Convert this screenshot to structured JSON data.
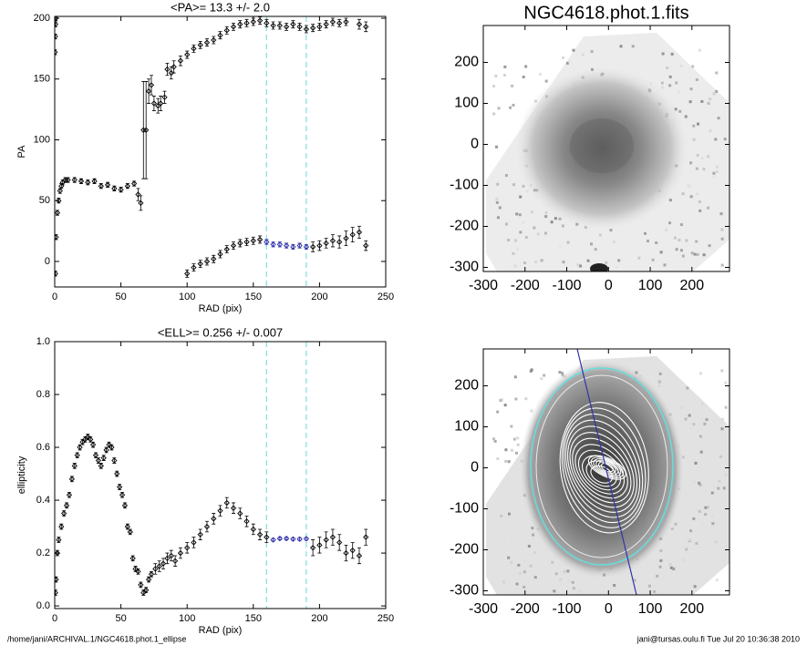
{
  "chart_data": [
    {
      "type": "scatter",
      "title": "<PA>=  13.3 +/-   2.0",
      "x_label": "RAD (pix)",
      "y_label": "PA",
      "xlim": [
        0,
        250
      ],
      "xticks": [
        0,
        50,
        100,
        150,
        200,
        250
      ],
      "ylim": [
        -21,
        201.5
      ],
      "yticks": [
        0,
        50,
        100,
        150,
        200
      ],
      "vlines": [
        160,
        190
      ],
      "vline_color": "#7fdede",
      "series": [
        {
          "color": "#000000",
          "x": [
            0.2,
            0.4,
            0.6,
            0.8,
            0.5,
            1,
            2,
            3,
            4,
            5,
            6,
            8,
            10,
            15,
            20,
            25,
            30,
            35,
            40,
            45,
            50,
            55,
            60,
            63,
            65,
            67,
            69,
            71,
            73,
            75,
            78,
            80,
            83,
            85,
            88,
            90,
            95,
            100,
            105,
            110,
            115,
            120,
            125,
            130,
            135,
            140,
            145,
            150,
            155,
            160,
            165,
            170,
            175,
            180,
            185,
            190,
            195,
            200,
            205,
            210,
            215,
            220,
            230,
            235
          ],
          "values": [
            172,
            185,
            195,
            200,
            -10,
            20,
            40,
            50,
            58,
            62,
            65,
            67,
            67,
            67,
            66,
            65,
            66,
            62,
            63,
            60,
            59,
            62,
            64,
            55,
            48,
            108,
            108,
            140,
            145,
            130,
            128,
            130,
            135,
            158,
            155,
            160,
            165,
            170,
            175,
            178,
            180,
            182,
            186,
            190,
            193,
            195,
            196,
            197,
            198,
            196,
            194,
            194,
            193,
            195,
            193,
            191,
            192,
            193,
            195,
            197,
            196,
            197,
            195,
            193
          ],
          "errors": [
            2,
            2,
            2,
            2,
            2,
            2,
            2,
            2,
            2,
            2,
            2,
            2,
            2,
            2,
            2,
            2,
            2,
            2,
            2,
            2,
            2,
            2,
            2,
            5,
            6,
            40,
            40,
            10,
            8,
            6,
            6,
            6,
            5,
            5,
            5,
            5,
            4,
            3,
            3,
            3,
            3,
            3,
            3,
            3,
            3,
            3,
            3,
            3,
            3,
            3,
            3,
            3,
            3,
            3,
            3,
            3,
            3,
            3,
            3,
            3,
            3,
            3,
            4,
            4
          ]
        },
        {
          "color": "#000000",
          "x": [
            100,
            105,
            110,
            115,
            120,
            125,
            130,
            135,
            140,
            145,
            150,
            155,
            195,
            200,
            205,
            210,
            215,
            220,
            225,
            230,
            235
          ],
          "values": [
            -10,
            -5,
            -2,
            0,
            2,
            6,
            10,
            13,
            15,
            16,
            17,
            18,
            12,
            13,
            15,
            17,
            16,
            19,
            22,
            24,
            13
          ],
          "errors": [
            3,
            3,
            3,
            3,
            3,
            3,
            3,
            3,
            3,
            3,
            3,
            3,
            4,
            4,
            4,
            5,
            5,
            6,
            6,
            5,
            4
          ]
        },
        {
          "color": "#2a2aa8",
          "x": [
            160,
            165,
            170,
            175,
            180,
            185,
            190
          ],
          "values": [
            16,
            14,
            14,
            13,
            12,
            13,
            12
          ],
          "errors": [
            2,
            2,
            2,
            2,
            2,
            2,
            2
          ]
        }
      ]
    },
    {
      "type": "scatter",
      "title": "<ELL>= 0.256 +/-  0.007",
      "x_label": "RAD (pix)",
      "y_label": "ellipticity",
      "xlim": [
        0,
        250
      ],
      "xticks": [
        0,
        50,
        100,
        150,
        200,
        250
      ],
      "ylim": [
        -0.01,
        1.0
      ],
      "yticks": [
        {
          "value": 0,
          "label": "0.0"
        },
        {
          "value": 0.2,
          "label": "0.2"
        },
        {
          "value": 0.4,
          "label": "0.4"
        },
        {
          "value": 0.6,
          "label": "0.6"
        },
        {
          "value": 0.8,
          "label": "0.8"
        },
        {
          "value": 1,
          "label": "1.0"
        }
      ],
      "vlines": [
        160,
        190
      ],
      "vline_color": "#7fdede",
      "series": [
        {
          "color": "#000000",
          "x": [
            0.5,
            1,
            2,
            3,
            5,
            7,
            9,
            11,
            13,
            15,
            17,
            19,
            21,
            23,
            25,
            27,
            29,
            31,
            33,
            35,
            37,
            39,
            41,
            43,
            45,
            47,
            49,
            51,
            53,
            55,
            57,
            59,
            61,
            63,
            65,
            67,
            69,
            71,
            73,
            76,
            79,
            82,
            85,
            88,
            91,
            95,
            100,
            105,
            110,
            115,
            120,
            125,
            130,
            135,
            140,
            145,
            150,
            155,
            160,
            195,
            200,
            205,
            210,
            215,
            220,
            225,
            230,
            235
          ],
          "values": [
            0.05,
            0.1,
            0.2,
            0.25,
            0.3,
            0.35,
            0.38,
            0.42,
            0.48,
            0.53,
            0.57,
            0.6,
            0.62,
            0.63,
            0.64,
            0.63,
            0.61,
            0.57,
            0.55,
            0.53,
            0.56,
            0.59,
            0.61,
            0.6,
            0.55,
            0.5,
            0.45,
            0.42,
            0.38,
            0.3,
            0.28,
            0.18,
            0.14,
            0.13,
            0.08,
            0.05,
            0.06,
            0.1,
            0.12,
            0.14,
            0.15,
            0.16,
            0.18,
            0.19,
            0.17,
            0.2,
            0.22,
            0.24,
            0.27,
            0.3,
            0.33,
            0.36,
            0.39,
            0.37,
            0.35,
            0.32,
            0.29,
            0.27,
            0.26,
            0.22,
            0.23,
            0.25,
            0.26,
            0.24,
            0.2,
            0.21,
            0.19,
            0.26
          ],
          "errors": [
            0.01,
            0.01,
            0.01,
            0.01,
            0.01,
            0.01,
            0.01,
            0.01,
            0.01,
            0.01,
            0.01,
            0.01,
            0.01,
            0.01,
            0.01,
            0.01,
            0.01,
            0.01,
            0.01,
            0.01,
            0.01,
            0.01,
            0.01,
            0.01,
            0.01,
            0.01,
            0.01,
            0.01,
            0.01,
            0.01,
            0.01,
            0.01,
            0.01,
            0.01,
            0.01,
            0.01,
            0.01,
            0.01,
            0.01,
            0.02,
            0.02,
            0.02,
            0.02,
            0.02,
            0.02,
            0.02,
            0.02,
            0.02,
            0.02,
            0.02,
            0.02,
            0.02,
            0.02,
            0.02,
            0.02,
            0.02,
            0.02,
            0.02,
            0.02,
            0.03,
            0.03,
            0.03,
            0.03,
            0.03,
            0.03,
            0.03,
            0.03,
            0.03
          ]
        },
        {
          "color": "#2a2aa8",
          "x": [
            165,
            170,
            175,
            180,
            185,
            190
          ],
          "values": [
            0.25,
            0.255,
            0.255,
            0.253,
            0.253,
            0.254
          ],
          "errors": [
            0.005,
            0.005,
            0.005,
            0.005,
            0.005,
            0.005
          ]
        }
      ]
    },
    {
      "type": "image",
      "title": "NGC4618.phot.1.fits",
      "xlim": [
        -300,
        290
      ],
      "xticks": [
        -300,
        -200,
        -100,
        0,
        100,
        200
      ],
      "ylim": [
        -310,
        290
      ],
      "yticks": [
        -300,
        -200,
        -100,
        0,
        100,
        200
      ]
    },
    {
      "type": "image",
      "xlim": [
        -300,
        290
      ],
      "xticks": [
        -300,
        -200,
        -100,
        0,
        100,
        200
      ],
      "ylim": [
        -310,
        290
      ],
      "yticks": [
        -300,
        -200,
        -100,
        0,
        100,
        200
      ]
    }
  ],
  "footer": {
    "left": "/home/jani/ARCHIVAL.1/NGC4618.phot.1_ellipse",
    "right": "jani@tursas.oulu.fi  Tue Jul 20 10:36:38 2010"
  }
}
